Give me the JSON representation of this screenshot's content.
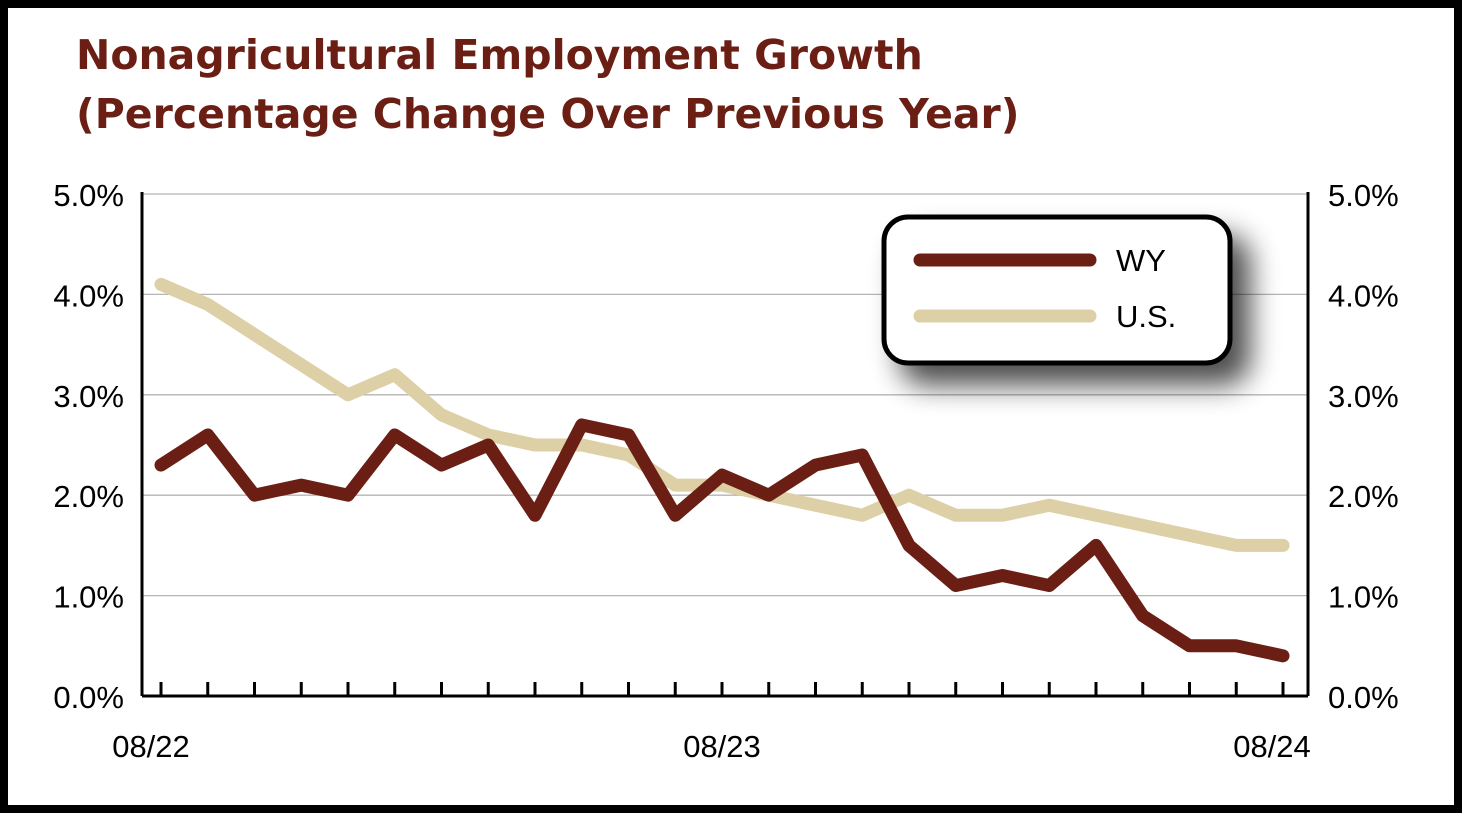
{
  "chart_data": {
    "type": "line",
    "title_line1": "Nonagricultural Employment Growth",
    "title_line2": "(Percentage Change Over Previous Year)",
    "x": [
      "08/22",
      "09/22",
      "10/22",
      "11/22",
      "12/22",
      "01/23",
      "02/23",
      "03/23",
      "04/23",
      "05/23",
      "06/23",
      "07/23",
      "08/23",
      "09/23",
      "10/23",
      "11/23",
      "12/23",
      "01/24",
      "02/24",
      "03/24",
      "04/24",
      "05/24",
      "06/24",
      "07/24",
      "08/24"
    ],
    "x_tick_labels": [
      "08/22",
      "08/23",
      "08/24"
    ],
    "y_tick_labels": [
      "0.0%",
      "1.0%",
      "2.0%",
      "3.0%",
      "4.0%",
      "5.0%"
    ],
    "ylim": [
      0,
      5
    ],
    "grid": true,
    "legend_position": "top-right",
    "series": [
      {
        "name": "WY",
        "color": "#6b1f14",
        "values": [
          2.3,
          2.6,
          2.0,
          2.1,
          2.0,
          2.6,
          2.3,
          2.5,
          1.8,
          2.7,
          2.6,
          1.8,
          2.2,
          2.0,
          2.3,
          2.4,
          1.5,
          1.1,
          1.2,
          1.1,
          1.5,
          0.8,
          0.5,
          0.5,
          0.4
        ]
      },
      {
        "name": "U.S.",
        "color": "#ddcfa6",
        "values": [
          4.1,
          3.9,
          3.6,
          3.3,
          3.0,
          3.2,
          2.8,
          2.6,
          2.5,
          2.5,
          2.4,
          2.1,
          2.1,
          2.0,
          1.9,
          1.8,
          2.0,
          1.8,
          1.8,
          1.9,
          1.8,
          1.7,
          1.6,
          1.5,
          1.5
        ]
      }
    ]
  },
  "colors": {
    "title": "#6b1f14",
    "axis": "#000000",
    "grid": "#b5b5b5"
  }
}
